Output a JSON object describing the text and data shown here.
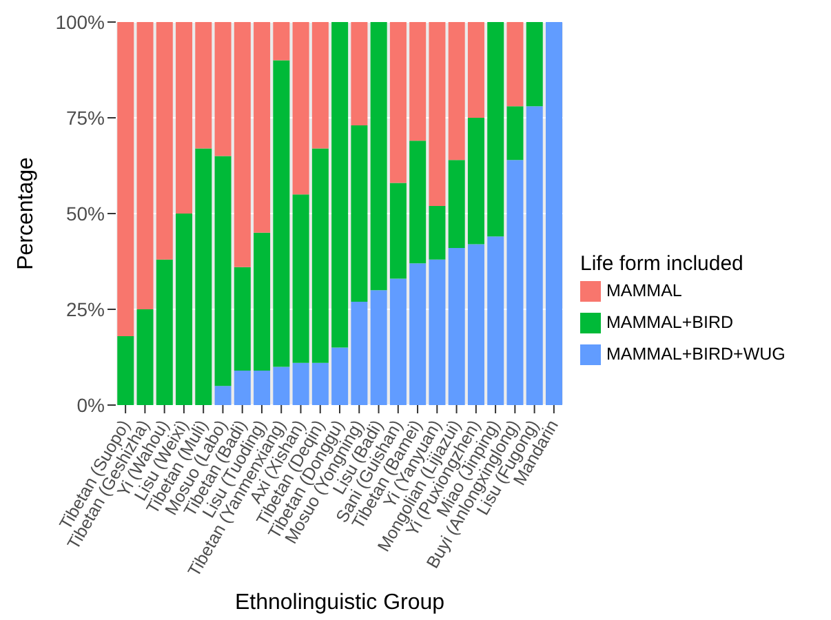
{
  "chart_data": {
    "type": "bar",
    "stacked": true,
    "xlabel": "Ethnolinguistic Group",
    "ylabel": "Percentage",
    "legend_title": "Life form included",
    "categories": [
      "Tibetan (Suopo)",
      "Tibetan (Geshizha)",
      "Yi (Wahou)",
      "Lisu (Weixi)",
      "Tibetan (Muli)",
      "Mosuo (Labo)",
      "Tibetan (Badi)",
      "Lisu (Tuoding)",
      "Tibetan (Yanmenxiang)",
      "Axi (Xishan)",
      "Tibetan (Deqin)",
      "Tibetan (Donggu)",
      "Mosuo (Yongning)",
      "Lisu (Badi)",
      "Sani (Guishan)",
      "Tibetan (Bamei)",
      "Yi (Yanyuan)",
      "Mongolian (Lijiazui)",
      "Yi (Puxiongzhen)",
      "Miao (Jinping)",
      "Buyi (Anlongxinglong)",
      "Lisu (Fugong)",
      "Mandarin"
    ],
    "series": [
      {
        "name": "MAMMAL+BIRD+WUG",
        "color": "#619cff",
        "values": [
          0,
          0,
          0,
          0,
          0,
          5,
          9,
          9,
          10,
          11,
          11,
          15,
          27,
          30,
          33,
          37,
          38,
          41,
          42,
          44,
          64,
          78,
          100
        ]
      },
      {
        "name": "MAMMAL+BIRD",
        "color": "#00ba38",
        "values": [
          18,
          25,
          38,
          50,
          67,
          60,
          27,
          36,
          80,
          44,
          56,
          85,
          46,
          70,
          25,
          32,
          14,
          23,
          33,
          56,
          14,
          22,
          0
        ]
      },
      {
        "name": "MAMMAL",
        "color": "#f8766d",
        "values": [
          82,
          75,
          62,
          50,
          33,
          35,
          64,
          55,
          10,
          45,
          33,
          0,
          27,
          0,
          42,
          31,
          48,
          36,
          25,
          0,
          22,
          0,
          0
        ]
      }
    ],
    "ylim": [
      0,
      100
    ],
    "yticks": [
      {
        "value": 0,
        "label": "0%"
      },
      {
        "value": 25,
        "label": "25%"
      },
      {
        "value": 50,
        "label": "50%"
      },
      {
        "value": 75,
        "label": "75%"
      },
      {
        "value": 100,
        "label": "100%"
      }
    ],
    "grid": true,
    "legend": "right"
  }
}
